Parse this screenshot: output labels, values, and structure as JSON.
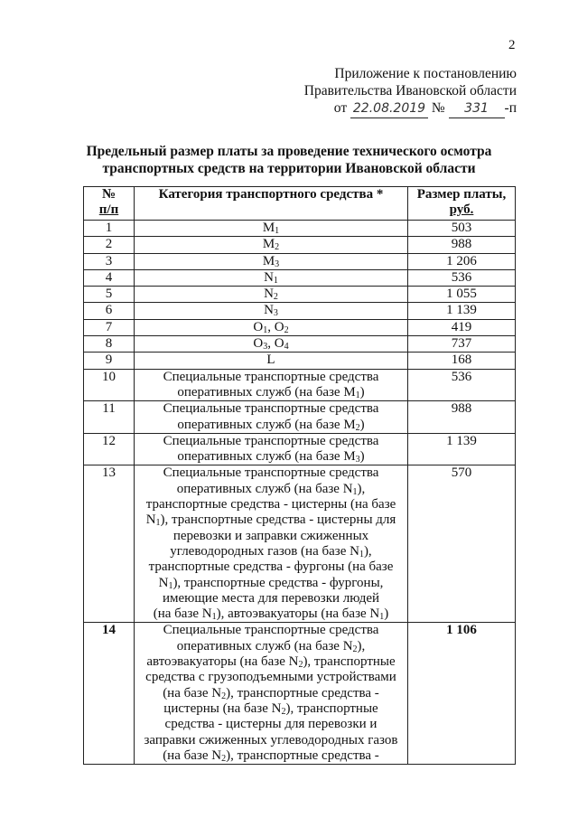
{
  "page_number": "2",
  "appendix": {
    "line1": "Приложение к постановлению",
    "line2": "Правительства Ивановской области",
    "from_label": "от",
    "date": "22.08.2019",
    "number_label": "№",
    "number": "331",
    "suffix": "-п"
  },
  "title": {
    "line1": "Предельный размер платы за проведение технического осмотра",
    "line2": "транспортных средств на территории Ивановской области"
  },
  "table": {
    "headers": {
      "num_line1": "№",
      "num_line2": "п/п",
      "category": "Категория транспортного средства *",
      "price_line1": "Размер платы,",
      "price_line2": "руб."
    },
    "rows": [
      {
        "num": "1",
        "price": "503",
        "lines": [
          [
            "M",
            {
              "sub": "1"
            }
          ]
        ]
      },
      {
        "num": "2",
        "price": "988",
        "lines": [
          [
            "M",
            {
              "sub": "2"
            }
          ]
        ]
      },
      {
        "num": "3",
        "price": "1 206",
        "lines": [
          [
            "M",
            {
              "sub": "3"
            }
          ]
        ]
      },
      {
        "num": "4",
        "price": "536",
        "lines": [
          [
            "N",
            {
              "sub": "1"
            }
          ]
        ]
      },
      {
        "num": "5",
        "price": "1 055",
        "lines": [
          [
            "N",
            {
              "sub": "2"
            }
          ]
        ]
      },
      {
        "num": "6",
        "price": "1 139",
        "lines": [
          [
            "N",
            {
              "sub": "3"
            }
          ]
        ]
      },
      {
        "num": "7",
        "price": "419",
        "lines": [
          [
            "O",
            {
              "sub": "1"
            },
            ", O",
            {
              "sub": "2"
            }
          ]
        ]
      },
      {
        "num": "8",
        "price": "737",
        "lines": [
          [
            "O",
            {
              "sub": "3"
            },
            ", O",
            {
              "sub": "4"
            }
          ]
        ]
      },
      {
        "num": "9",
        "price": "168",
        "lines": [
          [
            "L"
          ]
        ]
      },
      {
        "num": "10",
        "price": "536",
        "lines": [
          [
            "Специальные транспортные средства"
          ],
          [
            "оперативных служб (на базе M",
            {
              "sub": "1"
            },
            ")"
          ]
        ]
      },
      {
        "num": "11",
        "price": "988",
        "lines": [
          [
            "Специальные транспортные средства"
          ],
          [
            "оперативных служб (на базе M",
            {
              "sub": "2"
            },
            ")"
          ]
        ]
      },
      {
        "num": "12",
        "price": "1 139",
        "lines": [
          [
            "Специальные транспортные средства"
          ],
          [
            "оперативных служб (на базе M",
            {
              "sub": "3"
            },
            ")"
          ]
        ]
      },
      {
        "num": "13",
        "price": "570",
        "lines": [
          [
            "Специальные транспортные средства"
          ],
          [
            "оперативных служб (на базе N",
            {
              "sub": "1"
            },
            "),"
          ],
          [
            "транспортные средства - цистерны (на базе"
          ],
          [
            "N",
            {
              "sub": "1"
            },
            "), транспортные средства - цистерны для"
          ],
          [
            "перевозки и заправки сжиженных"
          ],
          [
            "углеводородных газов (на базе N",
            {
              "sub": "1"
            },
            "),"
          ],
          [
            "транспортные средства - фургоны (на базе"
          ],
          [
            "N",
            {
              "sub": "1"
            },
            "), транспортные средства - фургоны,"
          ],
          [
            "имеющие места для перевозки людей"
          ],
          [
            "(на базе N",
            {
              "sub": "1"
            },
            "), автоэвакуаторы (на базе N",
            {
              "sub": "1"
            },
            ")"
          ]
        ]
      },
      {
        "num": "14",
        "price": "1 106",
        "bold": true,
        "lines": [
          [
            "Специальные транспортные средства"
          ],
          [
            "оперативных служб (на базе N",
            {
              "sub": "2"
            },
            "),"
          ],
          [
            "автоэвакуаторы (на базе N",
            {
              "sub": "2"
            },
            "), транспортные"
          ],
          [
            "средства с грузоподъемными устройствами"
          ],
          [
            "(на базе N",
            {
              "sub": "2"
            },
            "), транспортные средства -"
          ],
          [
            "цистерны (на базе N",
            {
              "sub": "2"
            },
            "), транспортные"
          ],
          [
            "средства - цистерны для перевозки и"
          ],
          [
            "заправки сжиженных углеводородных газов"
          ],
          [
            "(на базе N",
            {
              "sub": "2"
            },
            "), транспортные средства -"
          ]
        ]
      }
    ]
  }
}
